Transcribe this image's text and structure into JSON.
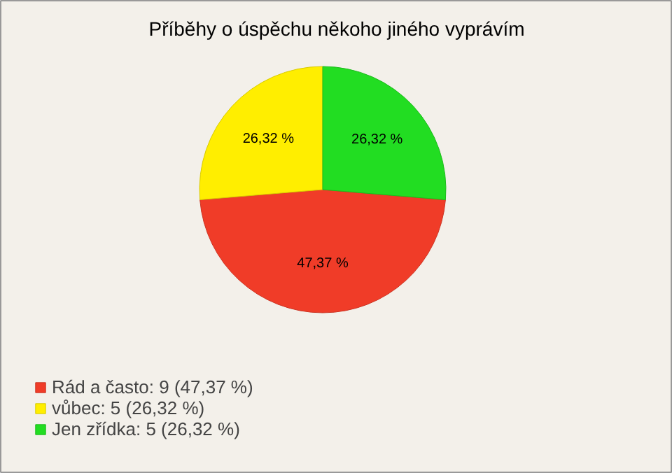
{
  "chart_data": {
    "type": "pie",
    "title": "Příběhy o úspěchu někoho jiného vyprávím",
    "categories": [
      "Rád a často: 9 (47,37 %)",
      "vůbec: 5 (26,32 %)",
      "Jen zřídka: 5 (26,32 %)"
    ],
    "values": [
      47.37,
      26.32,
      26.32
    ],
    "colors": [
      "#f03c28",
      "#ffee00",
      "#22dd22"
    ],
    "value_labels": [
      "47,37 %",
      "26,32 %",
      "26,32 %"
    ],
    "legend": "bottom left"
  }
}
